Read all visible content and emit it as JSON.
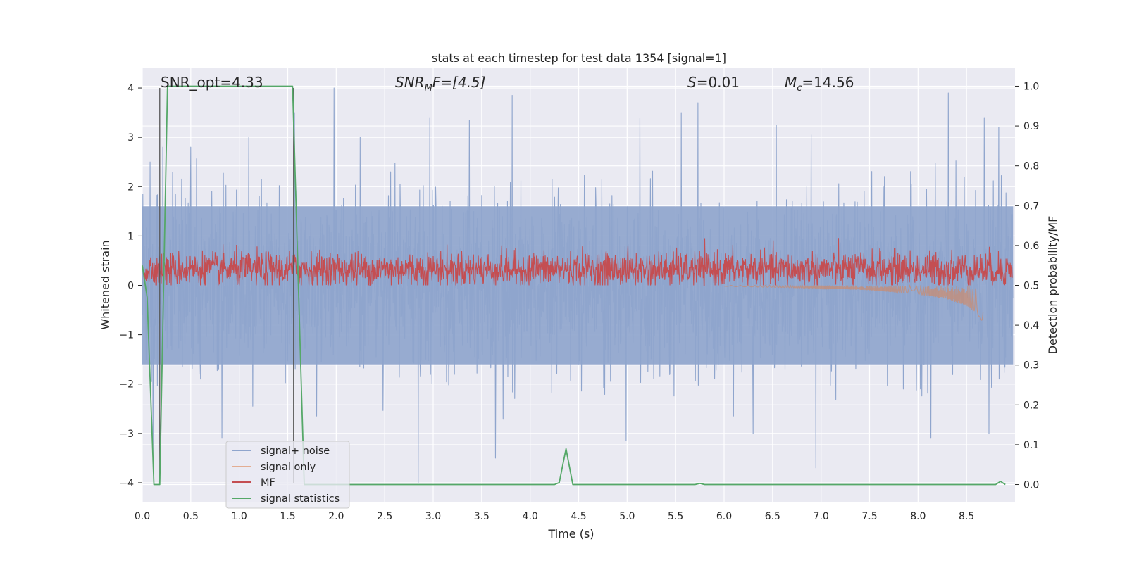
{
  "figure": {
    "title": "stats at each timestep for test data 1354 [signal=1]",
    "annotations": {
      "snr_opt": "SNR_opt=4.33",
      "snr_mf_main": "SNR",
      "snr_mf_sub": "M",
      "snr_mf_rest": "F=[4.5]",
      "s_main": "S",
      "s_rest": "=0.01",
      "mc_main": "M",
      "mc_sub": "c",
      "mc_rest": "=14.56"
    }
  },
  "chart_data": {
    "type": "line",
    "title": "stats at each timestep for test data 1354 [signal=1]",
    "xlabel": "Time (s)",
    "ylabel": "Whitened strain",
    "ylabel_right": "Detection probability/MF",
    "xlim": [
      0.0,
      9.0
    ],
    "ylim": [
      -4.4,
      4.4
    ],
    "ylim_right": [
      -0.045,
      1.045
    ],
    "xticks": [
      "0.0",
      "0.5",
      "1.0",
      "1.5",
      "2.0",
      "2.5",
      "3.0",
      "3.5",
      "4.0",
      "4.5",
      "5.0",
      "5.5",
      "6.0",
      "6.5",
      "7.0",
      "7.5",
      "8.0",
      "8.5"
    ],
    "yticks": [
      "4",
      "3",
      "2",
      "1",
      "0",
      "−1",
      "−2",
      "−3",
      "−4"
    ],
    "yticks_right": [
      "1.0",
      "0.9",
      "0.8",
      "0.7",
      "0.6",
      "0.5",
      "0.4",
      "0.3",
      "0.2",
      "0.1",
      "0.0"
    ],
    "grid": true,
    "legend_position": "lower-left",
    "colors": {
      "signal_noise": "#8fa5cd",
      "signal_only": "#dd8452",
      "mf": "#c44e52",
      "signal_statistics": "#55a868",
      "axes_bg": "#eaeaf2",
      "grid": "#ffffff"
    },
    "series": [
      {
        "name": "signal+ noise",
        "axis": "left",
        "description_values": "broadband whitened noise, mostly within ±1.6, spikes up to ±4",
        "peaks": [
          {
            "x": 0.08,
            "y": 2.5
          },
          {
            "x": 0.21,
            "y": 2.8
          },
          {
            "x": 0.5,
            "y": 2.8
          },
          {
            "x": 1.1,
            "y": 3.0
          },
          {
            "x": 1.57,
            "y": 3.5
          },
          {
            "x": 1.98,
            "y": 4.0
          },
          {
            "x": 2.25,
            "y": 3.0
          },
          {
            "x": 2.97,
            "y": 3.4
          },
          {
            "x": 3.38,
            "y": 3.35
          },
          {
            "x": 3.82,
            "y": 3.85
          },
          {
            "x": 5.14,
            "y": 3.4
          },
          {
            "x": 5.57,
            "y": 3.5
          },
          {
            "x": 5.74,
            "y": 3.7
          },
          {
            "x": 6.55,
            "y": 3.25
          },
          {
            "x": 6.91,
            "y": 3.05
          },
          {
            "x": 8.33,
            "y": 3.9
          },
          {
            "x": 8.7,
            "y": 3.4
          },
          {
            "x": 8.85,
            "y": 3.2
          }
        ],
        "troughs": [
          {
            "x": 0.11,
            "y": -3.6
          },
          {
            "x": 0.82,
            "y": -3.1
          },
          {
            "x": 2.85,
            "y": -4.0
          },
          {
            "x": 3.65,
            "y": -3.5
          },
          {
            "x": 5.0,
            "y": -3.15
          },
          {
            "x": 6.31,
            "y": -3.0
          },
          {
            "x": 6.96,
            "y": -3.7
          },
          {
            "x": 8.15,
            "y": -3.1
          },
          {
            "x": 8.75,
            "y": -3.0
          }
        ]
      },
      {
        "name": "signal only",
        "axis": "left",
        "description_values": "chirp waveform growing in amplitude, ending near 8.67 s",
        "x": [
          6.0,
          6.5,
          7.0,
          7.5,
          8.0,
          8.3,
          8.5,
          8.6,
          8.67
        ],
        "envelope": [
          0.02,
          0.04,
          0.06,
          0.1,
          0.18,
          0.28,
          0.42,
          0.55,
          0.75
        ]
      },
      {
        "name": "MF",
        "axis": "right",
        "description_values": "matched filter output fluctuating between about 0.5 and 0.62, peak 0.62",
        "baseline": 0.54,
        "range": [
          0.5,
          0.62
        ]
      },
      {
        "name": "signal statistics",
        "axis": "right",
        "x": [
          0.0,
          0.05,
          0.12,
          0.18,
          0.26,
          1.55,
          1.67,
          4.25,
          4.3,
          4.37,
          4.44,
          5.7,
          5.75,
          5.8,
          8.8,
          8.85,
          8.9
        ],
        "values": [
          0.55,
          0.47,
          0.0,
          0.0,
          1.0,
          1.0,
          0.0,
          0.0,
          0.005,
          0.09,
          0.0,
          0.0,
          0.003,
          0.0,
          0.0,
          0.008,
          0.0
        ]
      }
    ],
    "vertical_markers": [
      {
        "x": 0.18,
        "label": ""
      },
      {
        "x": 1.56,
        "label": ""
      }
    ]
  }
}
